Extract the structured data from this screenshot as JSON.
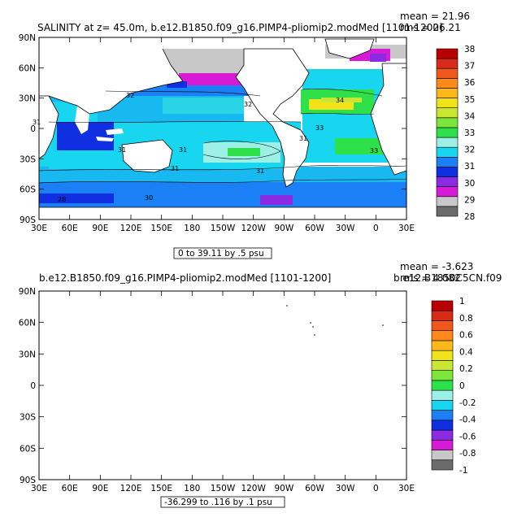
{
  "colors": {
    "ocean_palette": [
      "#0a3fe6",
      "#1b7ff5",
      "#18b3f0",
      "#2ad4e6",
      "#46e6c8",
      "#2ad3a8",
      "#2ee05a",
      "#7fe63a",
      "#c9e632",
      "#f2e21a",
      "#ffb81a",
      "#ff8a1a",
      "#f0571a",
      "#d82a18",
      "#b80000"
    ],
    "land": "#ffffff"
  },
  "chart_data": [
    {
      "type": "heatmap",
      "title": "SALINITY at z=  45.0m, b.e12.B1850.f09_g16.PIMP4-pliomip2.modMed [1101-1200]",
      "stats": {
        "mean": "mean = 21.96",
        "rms": "rms = 26.21"
      },
      "range_label": "0 to 39.11 by .5 psu",
      "xticks": [
        "30E",
        "60E",
        "90E",
        "120E",
        "150E",
        "180",
        "150W",
        "120W",
        "90W",
        "60W",
        "30W",
        "0",
        "30E"
      ],
      "yticks": [
        "90N",
        "60N",
        "30N",
        "0",
        "30S",
        "60S",
        "90S"
      ],
      "colorbar": {
        "labels": [
          "38",
          "37",
          "36",
          "35",
          "34",
          "33",
          "32",
          "31",
          "30",
          "29",
          "28"
        ],
        "colors": [
          "#6b6b6b",
          "#c8c8c8",
          "#d61ad6",
          "#8a2be2",
          "#0f2fe0",
          "#1b7ff5",
          "#18d6f0",
          "#9df0e6",
          "#2ee04a",
          "#7ee63a",
          "#c9e632",
          "#f2e21a",
          "#ffb81a",
          "#ff8a1a",
          "#f0571a",
          "#d82a18",
          "#b80000"
        ]
      },
      "contour_labels": [
        "31",
        "31",
        "31",
        "31",
        "31",
        "32",
        "32",
        "33",
        "34",
        "28",
        "30",
        "33",
        "31"
      ]
    },
    {
      "type": "heatmap",
      "title": "b.e12.B1850.f09_g16.PIMP4-pliomip2.modMed [1101-1200]",
      "title_right": "b.e12.B1850C5CN.f09",
      "stats": {
        "mean": "mean = -3.623",
        "rms": "rms = 4.082"
      },
      "range_label": "-36.299 to .116 by .1 psu",
      "xticks": [
        "30E",
        "60E",
        "90E",
        "120E",
        "150E",
        "180",
        "150W",
        "120W",
        "90W",
        "60W",
        "30W",
        "0",
        "30E"
      ],
      "yticks": [
        "90N",
        "60N",
        "30N",
        "0",
        "30S",
        "60S",
        "90S"
      ],
      "colorbar": {
        "labels": [
          "1",
          "0.8",
          "0.6",
          "0.4",
          "0.2",
          "0",
          "-0.2",
          "-0.4",
          "-0.6",
          "-0.8",
          "-1"
        ],
        "colors": [
          "#6b6b6b",
          "#c8c8c8",
          "#d61ad6",
          "#8a2be2",
          "#0f2fe0",
          "#1b7ff5",
          "#18d6f0",
          "#9df0e6",
          "#2ee04a",
          "#7ee63a",
          "#c9e632",
          "#f2e21a",
          "#ffb81a",
          "#ff8a1a",
          "#f0571a",
          "#d82a18",
          "#b80000"
        ]
      }
    }
  ]
}
